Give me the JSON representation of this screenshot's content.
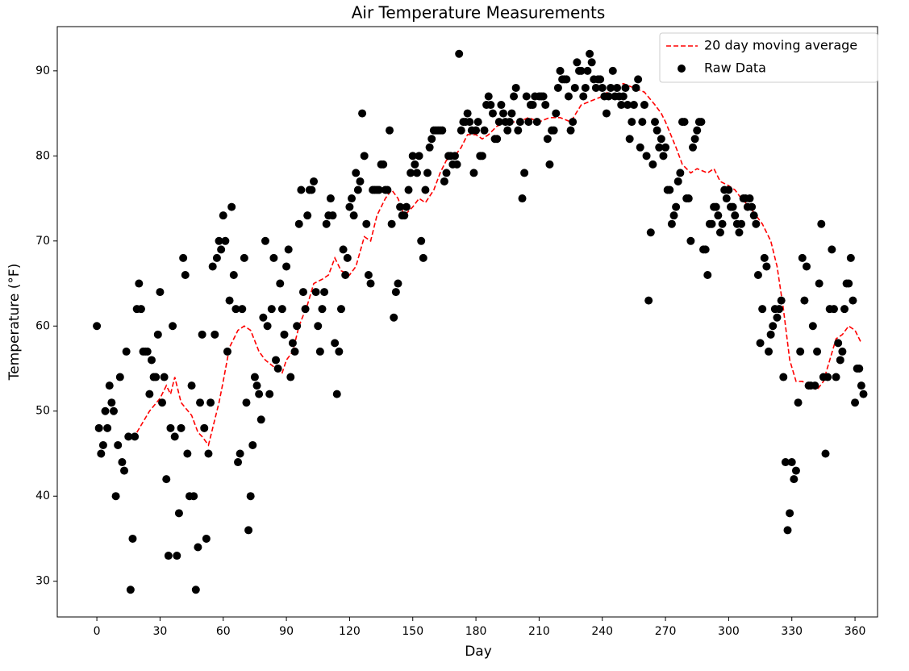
{
  "chart_data": {
    "type": "scatter",
    "title": "Air Temperature Measurements",
    "x_label": "Day",
    "y_label": "Temperature (°F)",
    "xlim": [
      -18.8,
      370.7
    ],
    "ylim": [
      25.8,
      95.2
    ],
    "xticks": [
      0,
      30,
      60,
      90,
      120,
      150,
      180,
      210,
      240,
      270,
      300,
      330,
      360
    ],
    "yticks": [
      30,
      40,
      50,
      60,
      70,
      80,
      90
    ],
    "grid": false,
    "legend": "upper right",
    "series": [
      {
        "name": "20 day moving average",
        "color": "#ff0000",
        "linestyle": "dashed",
        "x": [
          19,
          25,
          30,
          33,
          35,
          37,
          40,
          45,
          48,
          50,
          53,
          55,
          58,
          60,
          63,
          67,
          70,
          73,
          77,
          80,
          85,
          88,
          90,
          93,
          96,
          100,
          103,
          107,
          110,
          113,
          116,
          120,
          123,
          127,
          130,
          133,
          137,
          140,
          143,
          146,
          150,
          153,
          156,
          160,
          163,
          166,
          170,
          173,
          176,
          180,
          183,
          186,
          190,
          195,
          200,
          205,
          210,
          215,
          220,
          225,
          230,
          235,
          240,
          245,
          250,
          255,
          260,
          265,
          268,
          270,
          275,
          278,
          282,
          285,
          290,
          293,
          296,
          300,
          303,
          306,
          310,
          313,
          316,
          320,
          323,
          326,
          329,
          332,
          335,
          338,
          342,
          345,
          348,
          351,
          354,
          357,
          360,
          363
        ],
        "values": [
          47.5,
          50,
          51.5,
          53,
          52,
          54,
          51,
          49.5,
          47.5,
          47,
          46,
          48,
          51,
          53.5,
          57.5,
          59.5,
          60,
          59.5,
          57,
          56,
          55,
          54.5,
          56,
          57,
          60,
          62.5,
          65,
          65.5,
          66,
          68,
          66.5,
          66,
          67,
          70.5,
          70,
          73,
          75,
          76,
          75,
          73,
          74,
          75,
          74.5,
          76,
          78,
          79.5,
          80,
          81,
          82.5,
          82.5,
          82,
          82.5,
          83.5,
          84,
          84,
          84.5,
          84,
          84.5,
          84.5,
          84,
          86,
          86.5,
          87,
          88,
          88.5,
          88,
          87.5,
          86,
          85,
          84,
          81,
          79,
          78,
          78.5,
          78,
          78.5,
          77,
          76.5,
          76,
          75,
          74,
          73,
          72,
          70,
          67,
          62,
          56,
          53.5,
          53.5,
          53,
          52.5,
          53.5,
          56,
          58.5,
          59,
          60,
          59.5,
          58
        ]
      },
      {
        "name": "Raw Data",
        "color": "#000000",
        "marker": "o",
        "x": [
          0,
          1,
          2,
          3,
          4,
          5,
          6,
          7,
          8,
          9,
          10,
          11,
          12,
          13,
          14,
          15,
          16,
          17,
          18,
          19,
          20,
          21,
          22,
          23,
          24,
          25,
          26,
          27,
          28,
          29,
          30,
          31,
          32,
          33,
          34,
          35,
          36,
          37,
          38,
          39,
          40,
          41,
          42,
          43,
          44,
          45,
          46,
          47,
          48,
          49,
          50,
          51,
          52,
          53,
          54,
          55,
          56,
          57,
          58,
          59,
          60,
          61,
          62,
          63,
          64,
          65,
          66,
          67,
          68,
          69,
          70,
          71,
          72,
          73,
          74,
          75,
          76,
          77,
          78,
          79,
          80,
          81,
          82,
          83,
          84,
          85,
          86,
          87,
          88,
          89,
          90,
          91,
          92,
          93,
          94,
          95,
          96,
          97,
          98,
          99,
          100,
          101,
          102,
          103,
          104,
          105,
          106,
          107,
          108,
          109,
          110,
          111,
          112,
          113,
          114,
          115,
          116,
          117,
          118,
          119,
          120,
          121,
          122,
          123,
          124,
          125,
          126,
          127,
          128,
          129,
          130,
          131,
          132,
          133,
          134,
          135,
          136,
          137,
          138,
          139,
          140,
          141,
          142,
          143,
          144,
          145,
          146,
          147,
          148,
          149,
          150,
          151,
          152,
          153,
          154,
          155,
          156,
          157,
          158,
          159,
          160,
          161,
          162,
          163,
          164,
          165,
          166,
          167,
          168,
          169,
          170,
          171,
          172,
          173,
          174,
          175,
          176,
          177,
          178,
          179,
          180,
          181,
          182,
          183,
          184,
          185,
          186,
          187,
          188,
          189,
          190,
          191,
          192,
          193,
          194,
          195,
          196,
          197,
          198,
          199,
          200,
          201,
          202,
          203,
          204,
          205,
          206,
          207,
          208,
          209,
          210,
          211,
          212,
          213,
          214,
          215,
          216,
          217,
          218,
          219,
          220,
          221,
          222,
          223,
          224,
          225,
          226,
          227,
          228,
          229,
          230,
          231,
          232,
          233,
          234,
          235,
          236,
          237,
          238,
          239,
          240,
          241,
          242,
          243,
          244,
          245,
          246,
          247,
          248,
          249,
          250,
          251,
          252,
          253,
          254,
          255,
          256,
          257,
          258,
          259,
          260,
          261,
          262,
          263,
          264,
          265,
          266,
          267,
          268,
          269,
          270,
          271,
          272,
          273,
          274,
          275,
          276,
          277,
          278,
          279,
          280,
          281,
          282,
          283,
          284,
          285,
          286,
          287,
          288,
          289,
          290,
          291,
          292,
          293,
          294,
          295,
          296,
          297,
          298,
          299,
          300,
          301,
          302,
          303,
          304,
          305,
          306,
          307,
          308,
          309,
          310,
          311,
          312,
          313,
          314,
          315,
          316,
          317,
          318,
          319,
          320,
          321,
          322,
          323,
          324,
          325,
          326,
          327,
          328,
          329,
          330,
          331,
          332,
          333,
          334,
          335,
          336,
          337,
          338,
          339,
          340,
          341,
          342,
          343,
          344,
          345,
          346,
          347,
          348,
          349,
          350,
          351,
          352,
          353,
          354,
          355,
          356,
          357,
          358,
          359,
          360,
          361,
          362,
          363,
          364
        ],
        "values": [
          60,
          48,
          45,
          46,
          50,
          48,
          53,
          51,
          50,
          40,
          46,
          54,
          44,
          43,
          57,
          47,
          29,
          35,
          47,
          62,
          65,
          62,
          57,
          57,
          57,
          52,
          56,
          54,
          54,
          59,
          64,
          51,
          54,
          42,
          33,
          48,
          60,
          47,
          33,
          38,
          48,
          68,
          66,
          45,
          40,
          53,
          40,
          29,
          34,
          51,
          59,
          48,
          35,
          45,
          51,
          67,
          59,
          68,
          70,
          69,
          73,
          70,
          57,
          63,
          74,
          66,
          62,
          44,
          45,
          62,
          68,
          51,
          36,
          40,
          46,
          54,
          53,
          52,
          49,
          61,
          70,
          60,
          52,
          62,
          68,
          56,
          55,
          65,
          62,
          59,
          67,
          69,
          54,
          58,
          57,
          60,
          72,
          76,
          64,
          62,
          73,
          76,
          76,
          77,
          64,
          60,
          57,
          62,
          64,
          72,
          73,
          75,
          73,
          58,
          52,
          57,
          62,
          69,
          66,
          68,
          74,
          75,
          73,
          78,
          76,
          77,
          85,
          80,
          72,
          66,
          65,
          76,
          76,
          76,
          76,
          79,
          79,
          76,
          76,
          83,
          72,
          61,
          64,
          65,
          74,
          73,
          73,
          74,
          76,
          78,
          80,
          79,
          78,
          80,
          70,
          68,
          76,
          78,
          81,
          82,
          83,
          83,
          83,
          83,
          83,
          77,
          78,
          80,
          80,
          79,
          80,
          79,
          92,
          83,
          84,
          84,
          85,
          84,
          83,
          78,
          83,
          84,
          80,
          80,
          83,
          86,
          87,
          86,
          85,
          82,
          82,
          84,
          86,
          85,
          84,
          83,
          84,
          85,
          87,
          88,
          83,
          84,
          75,
          78,
          87,
          84,
          86,
          86,
          87,
          84,
          87,
          87,
          87,
          86,
          82,
          79,
          83,
          83,
          85,
          88,
          90,
          89,
          89,
          89,
          87,
          83,
          84,
          88,
          91,
          90,
          90,
          87,
          88,
          90,
          92,
          91,
          89,
          88,
          89,
          89,
          88,
          87,
          85,
          87,
          88,
          90,
          87,
          88,
          87,
          86,
          87,
          88,
          86,
          82,
          84,
          86,
          88,
          89,
          81,
          84,
          86,
          80,
          63,
          71,
          79,
          84,
          83,
          81,
          82,
          80,
          81,
          76,
          76,
          72,
          73,
          74,
          77,
          78,
          84,
          84,
          75,
          75,
          70,
          81,
          82,
          83,
          84,
          84,
          69,
          69,
          66,
          72,
          72,
          74,
          74,
          73,
          71,
          72,
          76,
          75,
          76,
          74,
          74,
          73,
          72,
          71,
          72,
          75,
          75,
          74,
          75,
          74,
          73,
          72,
          66,
          58,
          62,
          68,
          67,
          57,
          59,
          60,
          62,
          61,
          62,
          63,
          54,
          44,
          36,
          38,
          44,
          42,
          43,
          51,
          57,
          68,
          63,
          67,
          53,
          53,
          60,
          53,
          57,
          65,
          72,
          54,
          45,
          54,
          62,
          69,
          62,
          54,
          58,
          56,
          57,
          62,
          65,
          65,
          68,
          63,
          51,
          55,
          55,
          53,
          52
        ]
      }
    ]
  }
}
